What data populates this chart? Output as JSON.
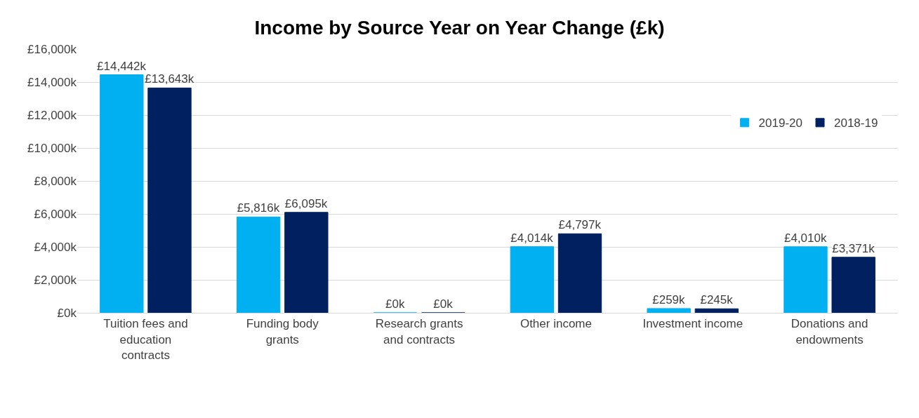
{
  "chart_data": {
    "type": "bar",
    "title": "Income by Source Year on Year Change (£k)",
    "categories": [
      "Tuition fees and education contracts",
      "Funding body grants",
      "Research grants and contracts",
      "Other income",
      "Investment income",
      "Donations and endowments"
    ],
    "series": [
      {
        "name": "2019-20",
        "color": "#00b0f0",
        "values": [
          14442,
          5816,
          0,
          4014,
          259,
          4010
        ],
        "value_labels": [
          "£14,442k",
          "£5,816k",
          "£0k",
          "£4,014k",
          "£259k",
          "£4,010k"
        ]
      },
      {
        "name": "2018-19",
        "color": "#002060",
        "values": [
          13643,
          6095,
          0,
          4797,
          245,
          3371
        ],
        "value_labels": [
          "£13,643k",
          "£6,095k",
          "£0k",
          "£4,797k",
          "£245k",
          "£3,371k"
        ]
      }
    ],
    "ylim": [
      0,
      16000
    ],
    "yticks": [
      {
        "value": 0,
        "label": "£0k"
      },
      {
        "value": 2000,
        "label": "£2,000k"
      },
      {
        "value": 4000,
        "label": "£4,000k"
      },
      {
        "value": 6000,
        "label": "£6,000k"
      },
      {
        "value": 8000,
        "label": "£8,000k"
      },
      {
        "value": 10000,
        "label": "£10,000k"
      },
      {
        "value": 12000,
        "label": "£12,000k"
      },
      {
        "value": 14000,
        "label": "£14,000k"
      },
      {
        "value": 16000,
        "label": "£16,000k"
      }
    ],
    "grid": "y",
    "legend": "top right"
  }
}
